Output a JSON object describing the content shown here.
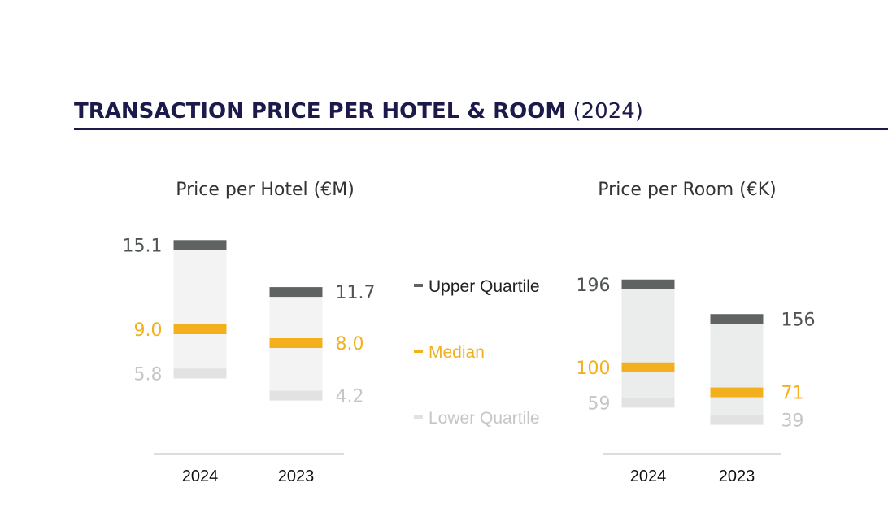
{
  "heading": {
    "bold": "TRANSACTION PRICE PER HOTEL & ROOM",
    "light": "(2024)"
  },
  "colors": {
    "heading": "#1c1a4a",
    "upper": "#5f6463",
    "median": "#f4b01c",
    "lower": "#e2e2e2",
    "box_fill": "#f3f3f3",
    "box_fill_room": "#ebecec",
    "upper_label": "#4f5453",
    "lower_label": "#c6c6c6",
    "axis": "#dddddd"
  },
  "legend": {
    "upper": "Upper Quartile",
    "median": "Median",
    "lower": "Lower Quartile"
  },
  "chart_data": [
    {
      "type": "box",
      "title": "Price per Hotel (€M)",
      "categories": [
        "2024",
        "2023"
      ],
      "upper_quartile": [
        15.1,
        11.7
      ],
      "median": [
        9.0,
        8.0
      ],
      "lower_quartile": [
        5.8,
        4.2
      ],
      "labels": {
        "upper": [
          "15.1",
          "11.7"
        ],
        "median": [
          "9.0",
          "8.0"
        ],
        "lower": [
          "5.8",
          "4.2"
        ]
      },
      "ylim": [
        0,
        20
      ]
    },
    {
      "type": "box",
      "title": "Price per Room (€K)",
      "categories": [
        "2024",
        "2023"
      ],
      "upper_quartile": [
        196,
        156
      ],
      "median": [
        100,
        71
      ],
      "lower_quartile": [
        59,
        39
      ],
      "labels": {
        "upper": [
          "196",
          "156"
        ],
        "median": [
          "100",
          "71"
        ],
        "lower": [
          "59",
          "39"
        ]
      },
      "ylim": [
        0,
        320
      ]
    }
  ]
}
